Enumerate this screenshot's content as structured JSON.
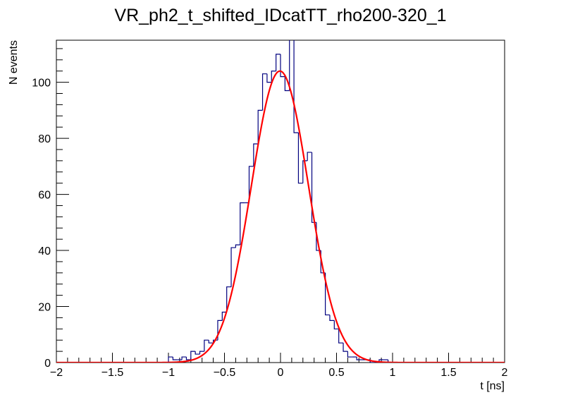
{
  "chart_data": {
    "type": "histogram",
    "title": "VR_ph2_t_shifted_IDcatTT_rho200-320_1",
    "xlabel": "t [ns]",
    "ylabel": "N events",
    "xlim": [
      -2,
      2
    ],
    "ylim": [
      0,
      115
    ],
    "x_ticks": [
      "-2",
      "-1.5",
      "-1",
      "-0.5",
      "0",
      "0.5",
      "1",
      "1.5",
      "2"
    ],
    "y_ticks": [
      "0",
      "20",
      "40",
      "60",
      "80",
      "100"
    ],
    "grid": false,
    "legend": "none",
    "bin_width": 0.04,
    "histogram": {
      "name": "data",
      "color": "#00007f",
      "bin_edges_start": -2,
      "counts": [
        0,
        0,
        0,
        0,
        0,
        0,
        0,
        0,
        0,
        0,
        0,
        0,
        0,
        0,
        0,
        0,
        0,
        0,
        0,
        0,
        0,
        0,
        0,
        0,
        0,
        2,
        1,
        1,
        2,
        1,
        4,
        3,
        4,
        8,
        7,
        8,
        15,
        18,
        27,
        41,
        42,
        57,
        57,
        70,
        78,
        90,
        103,
        100,
        104,
        110,
        102,
        97,
        116,
        82,
        64,
        72,
        75,
        50,
        40,
        32,
        17,
        15,
        12,
        7,
        4,
        2,
        2,
        1,
        1,
        1,
        0,
        0,
        1,
        1,
        0,
        0,
        0,
        0,
        0,
        0,
        0,
        0,
        0,
        0,
        0,
        0,
        0,
        0,
        0,
        0,
        0,
        0,
        0,
        0,
        0,
        0,
        0,
        0,
        0,
        0
      ]
    },
    "fit": {
      "type": "gaussian",
      "color": "#ff0000",
      "amplitude": 104,
      "mean": -0.005,
      "sigma": 0.255
    },
    "colors": {
      "frame": "#000000",
      "background": "#ffffff"
    }
  }
}
